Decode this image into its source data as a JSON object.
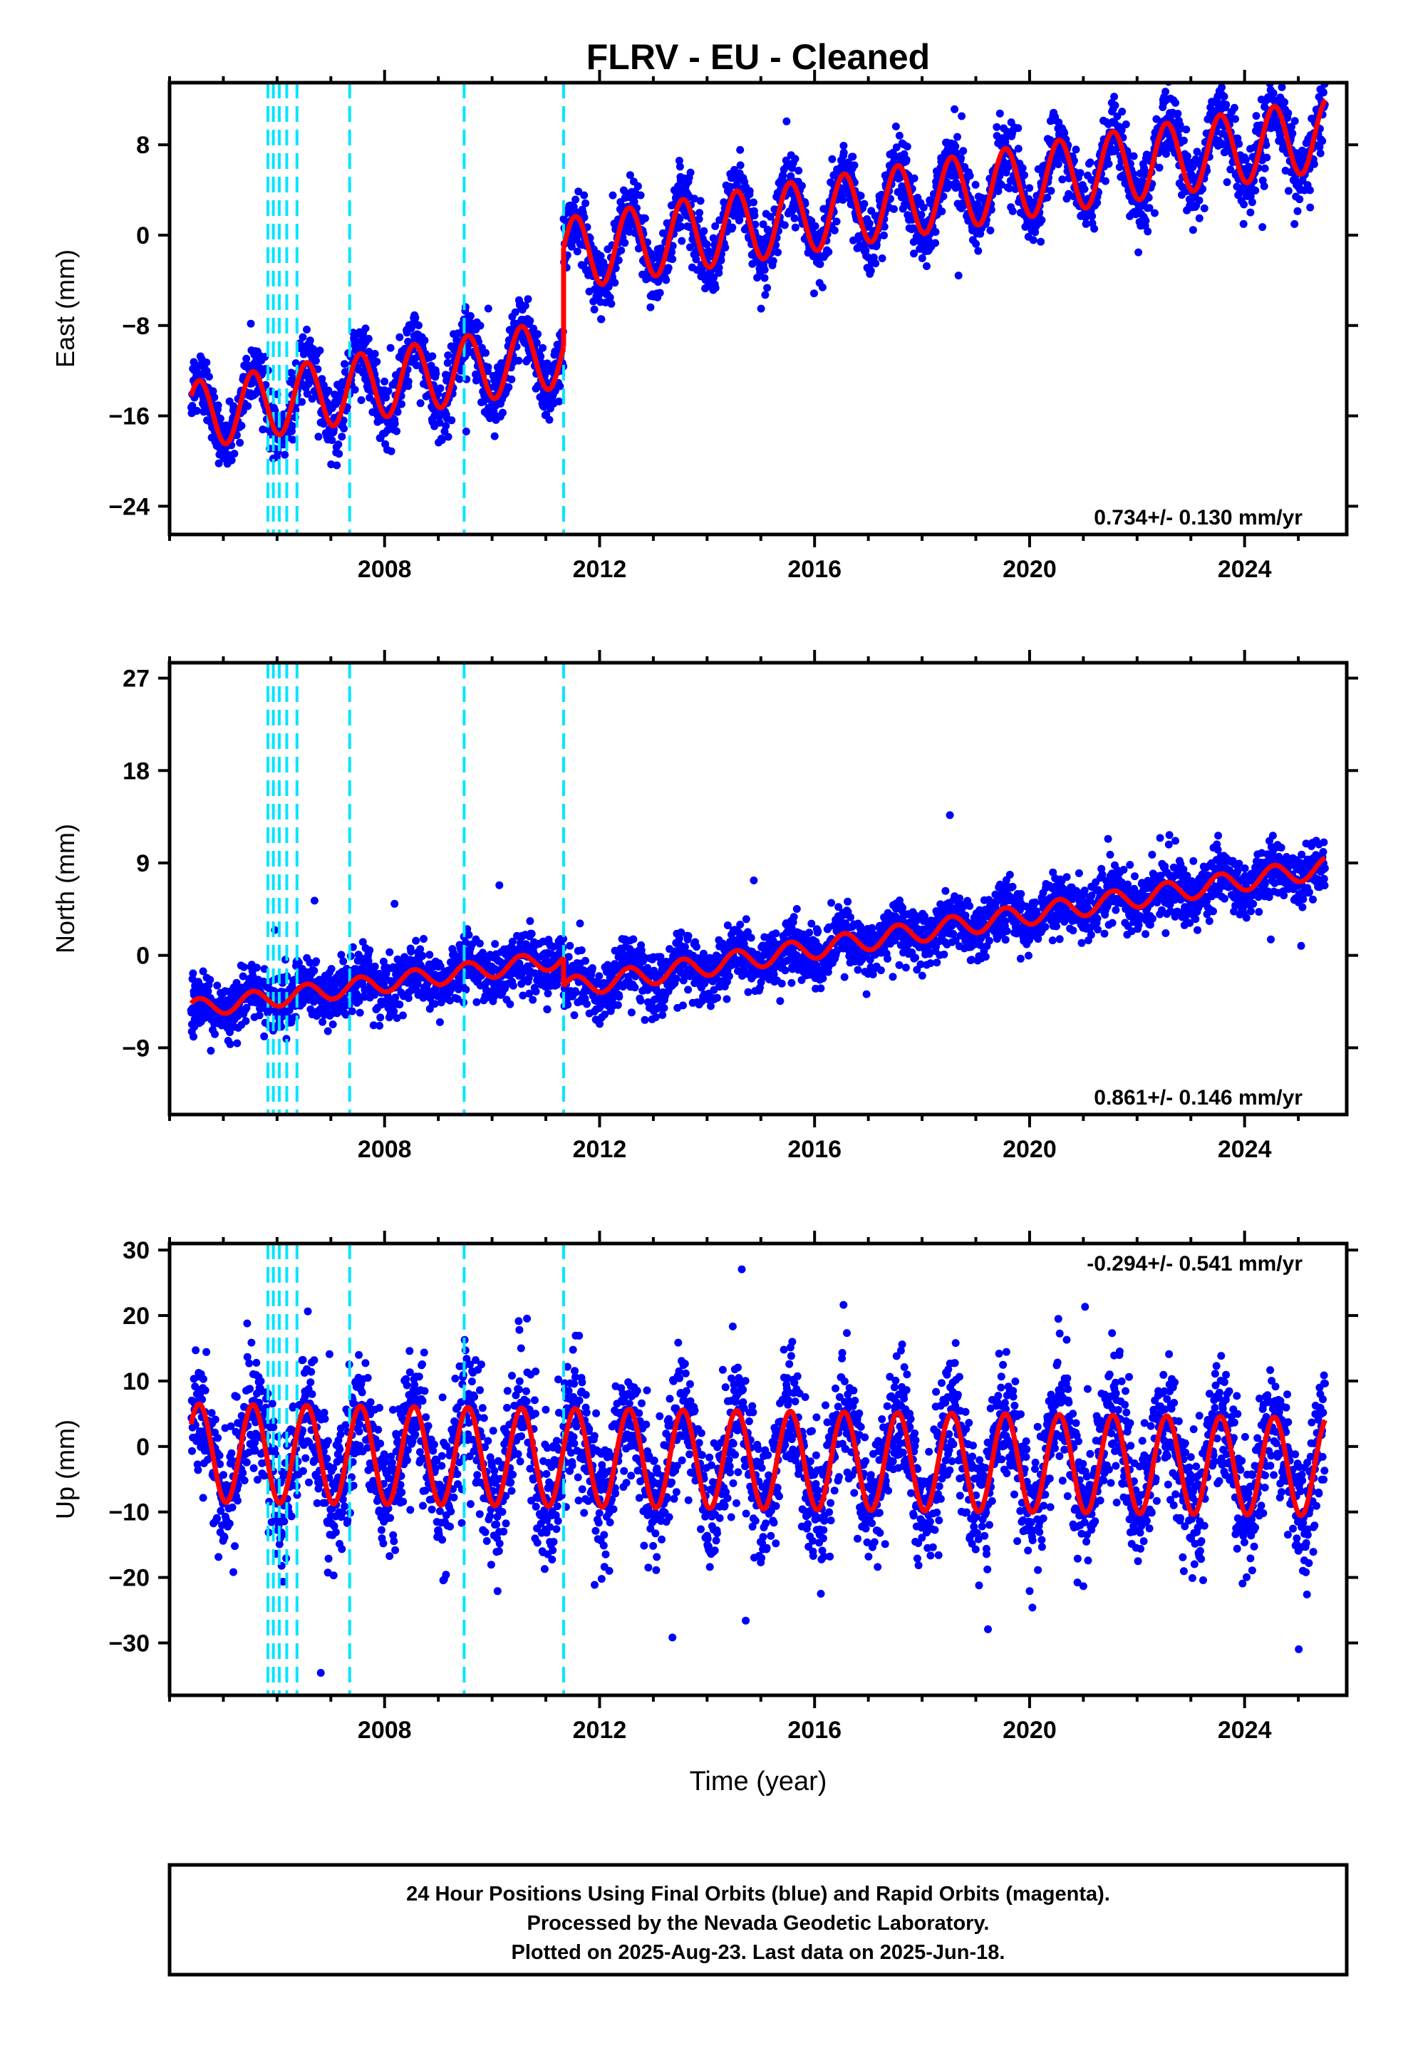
{
  "title": "FLRV  - EU - Cleaned",
  "colors": {
    "final_orbits": "#0000ff",
    "model": "#ff0000",
    "offsets": "#00e5ff",
    "frame": "#000000"
  },
  "chart_data": [
    {
      "type": "scatter",
      "panel": "east",
      "ylabel": "East (mm)",
      "ylim": [
        -26.5,
        13.5
      ],
      "yticks": [
        8,
        0,
        -8,
        -16,
        -24
      ],
      "ytick_labels": [
        "8",
        "0",
        "−8",
        "−16",
        "−24"
      ],
      "xlim": [
        2004.0,
        2025.9
      ],
      "xticks": [
        2008,
        2012,
        2016,
        2020,
        2024
      ],
      "xtick_labels": [
        "2008",
        "2012",
        "2016",
        "2020",
        "2024"
      ],
      "rate_label": "0.734+/- 0.130 mm/yr",
      "rate_label_position": "bottom-right",
      "series": [
        {
          "role": "daily positions (final orbits)",
          "x_range": [
            2004.4,
            2025.5
          ],
          "noise_mm": 1.5
        },
        {
          "role": "model fit",
          "segments": [
            {
              "x": [
                2004.4,
                2011.33
              ],
              "trend_start": -16.0,
              "slope": 0.8,
              "annual_amplitude": 3.0
            },
            {
              "x": [
                2011.33,
                2025.5
              ],
              "trend_start": -1.7,
              "slope": 0.75,
              "annual_amplitude": 3.2
            }
          ]
        }
      ],
      "offset_epochs": [
        2005.83,
        2005.93,
        2006.04,
        2006.18,
        2006.37,
        2007.35,
        2009.48,
        2011.33
      ]
    },
    {
      "type": "scatter",
      "panel": "north",
      "ylabel": "North (mm)",
      "ylim": [
        -15.5,
        28.5
      ],
      "yticks": [
        27,
        18,
        9,
        0,
        -9
      ],
      "ytick_labels": [
        "27",
        "18",
        "9",
        "0",
        "−9"
      ],
      "xlim": [
        2004.0,
        2025.9
      ],
      "xticks": [
        2008,
        2012,
        2016,
        2020,
        2024
      ],
      "xtick_labels": [
        "2008",
        "2012",
        "2016",
        "2020",
        "2024"
      ],
      "rate_label": "0.861+/- 0.146 mm/yr",
      "rate_label_position": "bottom-right",
      "series": [
        {
          "role": "daily positions (final orbits)",
          "x_range": [
            2004.4,
            2025.5
          ],
          "noise_mm": 1.4
        },
        {
          "role": "model fit",
          "segments": [
            {
              "x": [
                2004.4,
                2011.33
              ],
              "trend_start": -5.2,
              "slope": 0.7,
              "annual_amplitude": 0.9
            },
            {
              "x": [
                2011.33,
                2025.5
              ],
              "trend_start": -3.2,
              "slope": 0.83,
              "annual_amplitude": 1.0
            }
          ]
        }
      ],
      "offset_epochs": [
        2005.83,
        2005.93,
        2006.04,
        2006.18,
        2006.37,
        2007.35,
        2009.48,
        2011.33
      ]
    },
    {
      "type": "scatter",
      "panel": "up",
      "ylabel": "Up (mm)",
      "ylim": [
        -38,
        31
      ],
      "yticks": [
        30,
        20,
        10,
        0,
        -10,
        -20,
        -30
      ],
      "ytick_labels": [
        "30",
        "20",
        "10",
        "0",
        "−10",
        "−20",
        "−30"
      ],
      "xlim": [
        2004.0,
        2025.9
      ],
      "xticks": [
        2008,
        2012,
        2016,
        2020,
        2024
      ],
      "xtick_labels": [
        "2008",
        "2012",
        "2016",
        "2020",
        "2024"
      ],
      "xlabel": "Time (year)",
      "rate_label": "-0.294+/- 0.541 mm/yr",
      "rate_label_position": "top-right",
      "series": [
        {
          "role": "daily positions (final orbits)",
          "x_range": [
            2004.4,
            2025.5
          ],
          "noise_mm": 5.0
        },
        {
          "role": "model fit",
          "segments": [
            {
              "x": [
                2004.4,
                2025.5
              ],
              "trend_start": -1.0,
              "slope": -0.1,
              "annual_amplitude": 7.5
            }
          ]
        }
      ],
      "offset_epochs": [
        2005.83,
        2005.93,
        2006.04,
        2006.18,
        2006.37,
        2007.35,
        2009.48,
        2011.33
      ]
    }
  ],
  "footer": {
    "line1": "24 Hour Positions Using Final Orbits (blue) and Rapid Orbits (magenta).",
    "line2": "Processed by the Nevada Geodetic Laboratory.",
    "line3": "Plotted on 2025-Aug-23. Last data on 2025-Jun-18."
  }
}
